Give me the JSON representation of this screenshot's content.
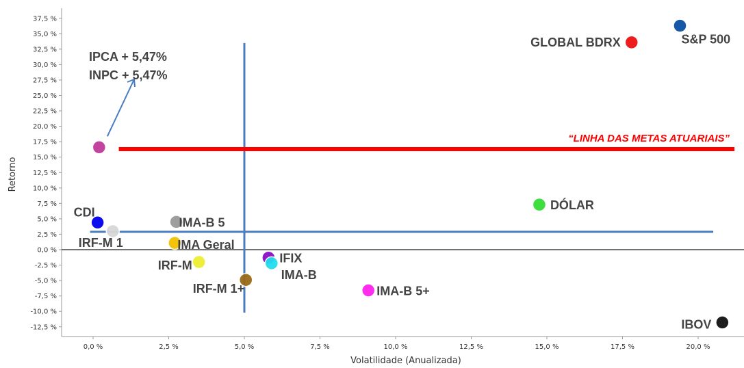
{
  "chart_data": {
    "type": "scatter",
    "xlabel": "Volatilidade (Anualizada)",
    "ylabel": "Retorno",
    "xlim": [
      -1.0,
      21.5
    ],
    "ylim": [
      -14.5,
      39.0
    ],
    "x_ticks": [
      "0,0 %",
      "2,5 %",
      "5,0 %",
      "7,5 %",
      "10,0 %",
      "12,5 %",
      "15,0 %",
      "17,5 %",
      "20,0 %"
    ],
    "y_ticks": [
      "37,5 %",
      "35,0 %",
      "32,5 %",
      "30,0 %",
      "27,5 %",
      "25,0 %",
      "22,5 %",
      "20,0 %",
      "17,5 %",
      "15,0 %",
      "12,5 %",
      "10,0 %",
      "7,5 %",
      "5,0 %",
      "2,5 %",
      "0,0 %",
      "-2,5 %",
      "-5,0 %",
      "-7,5 %",
      "-10,0 %",
      "-12,5 %"
    ],
    "grid": false,
    "points": [
      {
        "label": "S&P 500",
        "x": 19.4,
        "y": 36.3,
        "color": "#0b4fa3"
      },
      {
        "label": "GLOBAL BDRX",
        "x": 17.8,
        "y": 33.6,
        "color": "#ee1111"
      },
      {
        "label": "",
        "x": 0.2,
        "y": 16.6,
        "color": "#c03a9a"
      },
      {
        "label": "DÓLAR",
        "x": 14.75,
        "y": 7.3,
        "color": "#33dd33"
      },
      {
        "label": "CDI",
        "x": 0.15,
        "y": 4.4,
        "color": "#0000ee"
      },
      {
        "label": "IRF-M 1",
        "x": 0.65,
        "y": 3.0,
        "color": "#d8d8d8"
      },
      {
        "label": "IMA-B 5",
        "x": 2.75,
        "y": 4.5,
        "color": "#999999"
      },
      {
        "label": "IMA Geral",
        "x": 2.7,
        "y": 1.1,
        "color": "#f2c200"
      },
      {
        "label": "IRF-M",
        "x": 3.5,
        "y": -2.0,
        "color": "#eeee33"
      },
      {
        "label": "IFIX",
        "x": 5.8,
        "y": -1.3,
        "color": "#8a10c8"
      },
      {
        "label": "IMA-B",
        "x": 5.9,
        "y": -2.2,
        "color": "#22ddee"
      },
      {
        "label": "IRF-M 1+",
        "x": 5.05,
        "y": -4.9,
        "color": "#9a6a18"
      },
      {
        "label": "IMA-B 5+",
        "x": 9.1,
        "y": -6.6,
        "color": "#ff22ee"
      },
      {
        "label": "IBOV",
        "x": 20.8,
        "y": -11.8,
        "color": "#111111"
      }
    ],
    "annotations": {
      "arrow_text": [
        "IPCA + 5,47%",
        "INPC + 5,47%"
      ],
      "meta_line_label": "“LINHA DAS METAS ATUARIAIS”",
      "meta_line": {
        "x_start": 0.85,
        "x_end": 21.2,
        "y": 16.3,
        "color": "#ff0000"
      },
      "vertical_ref": {
        "x": 5.0,
        "y_start": 33.5,
        "y_end": -10.2,
        "color": "#4a7cc0"
      },
      "horizontal_ref": {
        "x_start": -0.1,
        "x_end": 20.5,
        "y": 2.9,
        "color": "#4a7cc0"
      },
      "zero_line_color": "#444444"
    }
  }
}
